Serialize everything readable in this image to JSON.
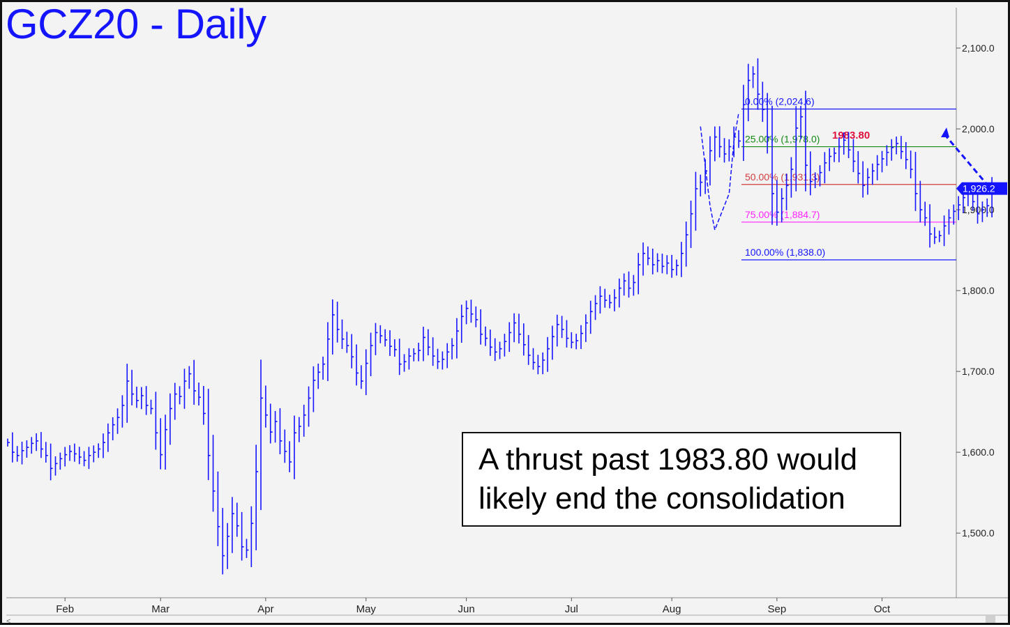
{
  "title": "GCZ20 - Daily",
  "callout": {
    "line1": "A thrust past 1983.80 would",
    "line2": "likely end the consolidation"
  },
  "colors": {
    "bars": "#1414ff",
    "fib_0": "#1414ff",
    "fib_25": "#128a12",
    "fib_50": "#d23c3c",
    "fib_75": "#ff22ff",
    "fib_100": "#1414ff",
    "target": "#e0103c"
  },
  "chart_data": {
    "type": "ohlc",
    "ylim": [
      1420,
      2150
    ],
    "y_ticks": [
      {
        "value": 1500,
        "label": "1,500.0"
      },
      {
        "value": 1600,
        "label": "1,600.0"
      },
      {
        "value": 1700,
        "label": "1,700.0"
      },
      {
        "value": 1800,
        "label": "1,800.0"
      },
      {
        "value": 1900,
        "label": "1,900.0"
      },
      {
        "value": 2000,
        "label": "2,000.0"
      },
      {
        "value": 2100,
        "label": "2,100.0"
      }
    ],
    "month_labels": [
      {
        "label": "Feb",
        "day": 12
      },
      {
        "label": "Mar",
        "day": 32
      },
      {
        "label": "Apr",
        "day": 54
      },
      {
        "label": "May",
        "day": 75
      },
      {
        "label": "Jun",
        "day": 96
      },
      {
        "label": "Jul",
        "day": 118
      },
      {
        "label": "Aug",
        "day": 139
      },
      {
        "label": "Sep",
        "day": 161
      },
      {
        "label": "Oct",
        "day": 183
      }
    ],
    "last_price": {
      "value": 1926.2,
      "label": "1,926.2"
    },
    "fib_levels": [
      {
        "label": "0.00% (2,024.6)",
        "value": 2024.6,
        "color_key": "fib_0"
      },
      {
        "label": "25.00% (1,978.0)",
        "value": 1978.0,
        "color_key": "fib_25"
      },
      {
        "label": "50.00% (1,931.3)",
        "value": 1931.3,
        "color_key": "fib_50"
      },
      {
        "label": "75.00% (1,884.7)",
        "value": 1884.7,
        "color_key": "fib_75"
      },
      {
        "label": "100.00% (1,838.0)",
        "value": 1838.0,
        "color_key": "fib_100"
      }
    ],
    "target_label": {
      "text": "1983.80",
      "value": 1983.8
    },
    "path_points": [
      {
        "day": 145,
        "price": 2003
      },
      {
        "day": 147,
        "price": 1905
      },
      {
        "day": 148,
        "price": 1875
      },
      {
        "day": 151,
        "price": 1920
      },
      {
        "day": 152,
        "price": 1985
      },
      {
        "day": 153,
        "price": 2020
      }
    ],
    "projection": {
      "from_price": 1920,
      "to_price": 2000
    },
    "closes": [
      1612,
      1600,
      1596,
      1602,
      1606,
      1611,
      1614,
      1604,
      1596,
      1580,
      1586,
      1592,
      1597,
      1601,
      1598,
      1594,
      1590,
      1596,
      1600,
      1604,
      1612,
      1624,
      1634,
      1643,
      1658,
      1688,
      1672,
      1664,
      1670,
      1658,
      1654,
      1624,
      1597,
      1628,
      1654,
      1672,
      1669,
      1688,
      1697,
      1676,
      1668,
      1648,
      1596,
      1552,
      1508,
      1472,
      1496,
      1524,
      1509,
      1483,
      1479,
      1512,
      1576,
      1667,
      1646,
      1625,
      1638,
      1614,
      1601,
      1588,
      1624,
      1632,
      1646,
      1667,
      1689,
      1699,
      1709,
      1740,
      1770,
      1752,
      1740,
      1732,
      1718,
      1698,
      1688,
      1710,
      1732,
      1748,
      1744,
      1739,
      1731,
      1727,
      1709,
      1712,
      1719,
      1722,
      1726,
      1742,
      1730,
      1719,
      1712,
      1715,
      1724,
      1732,
      1750,
      1768,
      1778,
      1771,
      1764,
      1746,
      1741,
      1730,
      1724,
      1728,
      1737,
      1748,
      1760,
      1746,
      1733,
      1720,
      1711,
      1706,
      1714,
      1728,
      1743,
      1758,
      1752,
      1741,
      1736,
      1738,
      1747,
      1760,
      1774,
      1784,
      1793,
      1788,
      1785,
      1791,
      1803,
      1812,
      1803,
      1810,
      1832,
      1846,
      1840,
      1832,
      1837,
      1830,
      1834,
      1826,
      1831,
      1846,
      1869,
      1895,
      1926,
      1934,
      1948,
      1973,
      1990,
      1978,
      1969,
      1978,
      1990,
      1985,
      2030,
      2060,
      2068,
      2043,
      2024,
      1990,
      1920,
      1897,
      1914,
      1930,
      1950,
      2001,
      2015,
      1955,
      1935,
      1938,
      1946,
      1958,
      1966,
      1970,
      1978,
      1986,
      1974,
      1960,
      1945,
      1930,
      1940,
      1948,
      1956,
      1963,
      1971,
      1977,
      1982,
      1972,
      1962,
      1950,
      1920,
      1900,
      1890,
      1870,
      1866,
      1868,
      1880,
      1890,
      1898,
      1906,
      1915,
      1920,
      1910,
      1895,
      1900,
      1905,
      1926
    ]
  }
}
